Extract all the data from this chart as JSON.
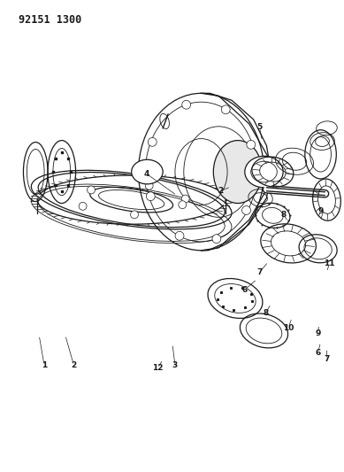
{
  "title_code": "92151 1300",
  "bg_color": "#ffffff",
  "line_color": "#1a1a1a",
  "fig_width": 3.89,
  "fig_height": 5.33,
  "dpi": 100
}
